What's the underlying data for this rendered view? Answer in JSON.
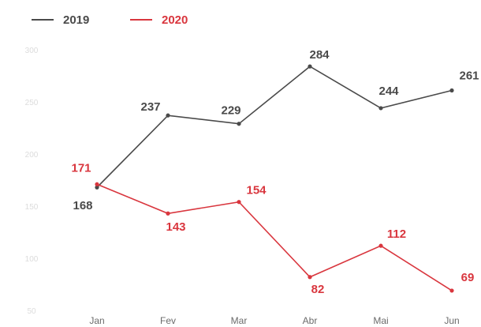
{
  "chart_data": {
    "type": "line",
    "title": "",
    "xlabel": "",
    "ylabel": "",
    "categories": [
      "Jan",
      "Fev",
      "Mar",
      "Abr",
      "Mai",
      "Jun"
    ],
    "y_ticks": [
      "50",
      "100",
      "150",
      "200",
      "250",
      "300"
    ],
    "ylim": [
      50,
      300
    ],
    "grid": false,
    "legend": "top-left",
    "series": [
      {
        "name": "2019",
        "color": "#4a4a4a",
        "values": [
          168,
          237,
          229,
          284,
          244,
          261
        ]
      },
      {
        "name": "2020",
        "color": "#d9363e",
        "values": [
          171,
          143,
          154,
          82,
          112,
          69
        ]
      }
    ]
  }
}
